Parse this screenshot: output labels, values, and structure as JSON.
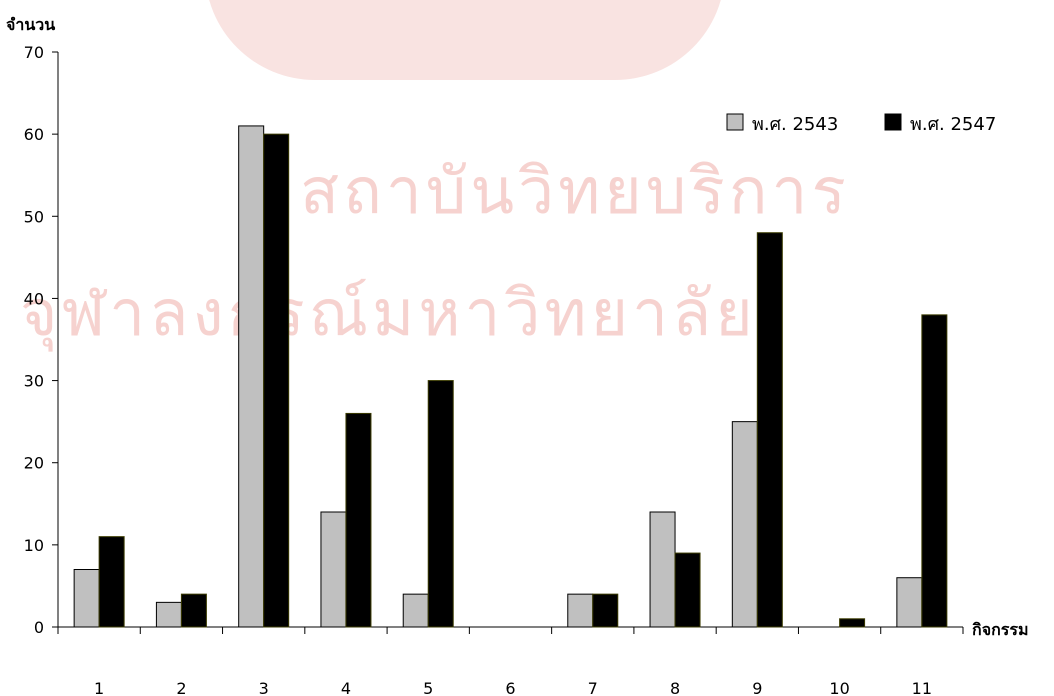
{
  "chart_data": {
    "type": "bar",
    "ylabel": "จำนวน",
    "xlabel": "กิจกรรม",
    "categories": [
      "1",
      "2",
      "3",
      "4",
      "5",
      "6",
      "7",
      "8",
      "9",
      "10",
      "11"
    ],
    "ylim": [
      0,
      70
    ],
    "yticks": [
      0,
      10,
      20,
      30,
      40,
      50,
      60,
      70
    ],
    "grid": false,
    "legend_position": "top-right",
    "series": [
      {
        "name": "พ.ศ. 2543",
        "color": "#c0c0c0",
        "values": [
          7,
          3,
          61,
          14,
          4,
          0,
          4,
          14,
          25,
          0,
          6
        ]
      },
      {
        "name": "พ.ศ. 2547",
        "color": "#000000",
        "values": [
          11,
          4,
          60,
          26,
          30,
          0,
          4,
          9,
          48,
          1,
          38
        ]
      }
    ]
  },
  "watermark": {
    "line1": "สถาบันวิทยบริการ",
    "line2": "จุฬาลงกรณ์มหาวิทยาลัย"
  }
}
